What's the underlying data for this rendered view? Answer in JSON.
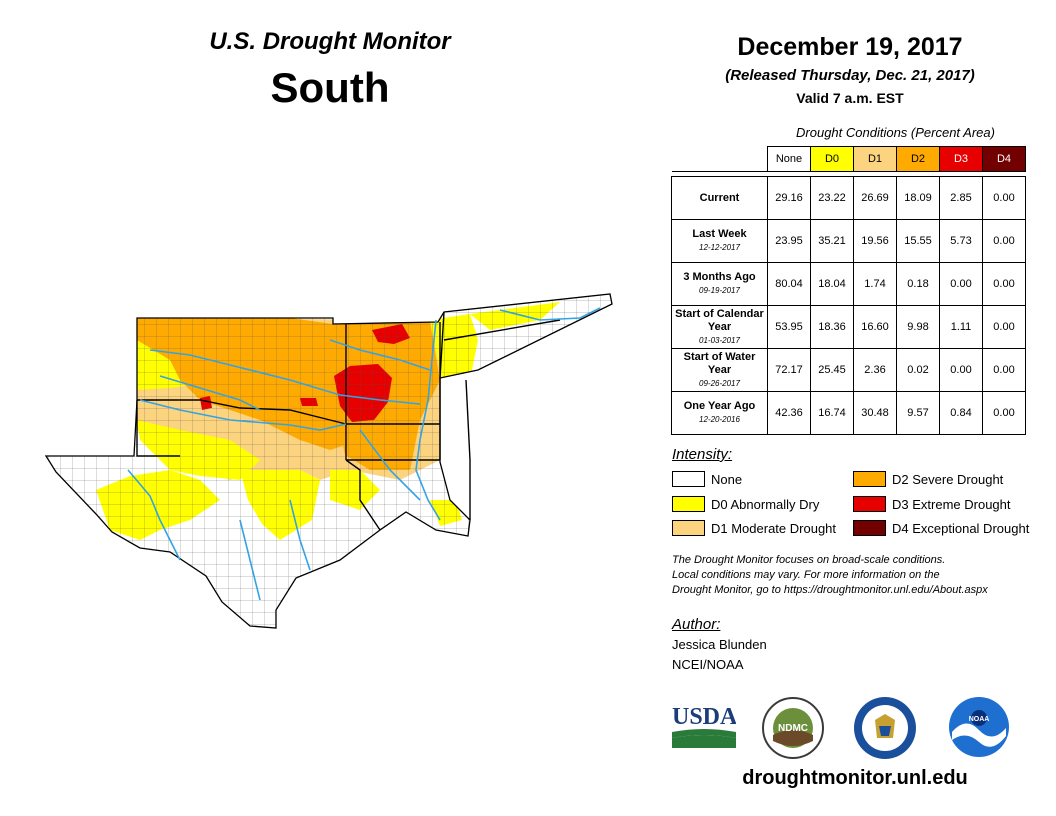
{
  "header": {
    "monitor_title": "U.S. Drought Monitor",
    "region": "South",
    "date": "December 19, 2017",
    "released": "(Released Thursday, Dec. 21, 2017)",
    "valid": "Valid 7 a.m. EST"
  },
  "table": {
    "caption": "Drought Conditions (Percent Area)",
    "columns": [
      {
        "label": "None",
        "color": "#ffffff"
      },
      {
        "label": "D0",
        "color": "#ffff00"
      },
      {
        "label": "D1",
        "color": "#fcd37f"
      },
      {
        "label": "D2",
        "color": "#ffaa00"
      },
      {
        "label": "D3",
        "color": "#e60000"
      },
      {
        "label": "D4",
        "color": "#730000"
      }
    ],
    "rows": [
      {
        "label": "Current",
        "date": "",
        "values": [
          "29.16",
          "23.22",
          "26.69",
          "18.09",
          "2.85",
          "0.00"
        ]
      },
      {
        "label": "Last Week",
        "date": "12-12-2017",
        "values": [
          "23.95",
          "35.21",
          "19.56",
          "15.55",
          "5.73",
          "0.00"
        ]
      },
      {
        "label": "3 Months Ago",
        "date": "09-19-2017",
        "values": [
          "80.04",
          "18.04",
          "1.74",
          "0.18",
          "0.00",
          "0.00"
        ]
      },
      {
        "label": "Start of Calendar Year",
        "date": "01-03-2017",
        "values": [
          "53.95",
          "18.36",
          "16.60",
          "9.98",
          "1.11",
          "0.00"
        ]
      },
      {
        "label": "Start of Water Year",
        "date": "09-26-2017",
        "values": [
          "72.17",
          "25.45",
          "2.36",
          "0.02",
          "0.00",
          "0.00"
        ]
      },
      {
        "label": "One Year Ago",
        "date": "12-20-2016",
        "values": [
          "42.36",
          "16.74",
          "30.48",
          "9.57",
          "0.84",
          "0.00"
        ]
      }
    ]
  },
  "legend": {
    "title": "Intensity:",
    "items": [
      {
        "label": "None",
        "color": "#ffffff"
      },
      {
        "label": "D0 Abnormally Dry",
        "color": "#ffff00"
      },
      {
        "label": "D1 Moderate Drought",
        "color": "#fcd37f"
      },
      {
        "label": "D2 Severe Drought",
        "color": "#ffaa00"
      },
      {
        "label": "D3 Extreme Drought",
        "color": "#e60000"
      },
      {
        "label": "D4 Exceptional Drought",
        "color": "#730000"
      }
    ]
  },
  "disclaimer": {
    "line1": "The Drought Monitor focuses on broad-scale conditions.",
    "line2": "Local conditions may vary. For more information on the",
    "line3": "Drought Monitor, go to https://droughtmonitor.unl.edu/About.aspx"
  },
  "author": {
    "label": "Author:",
    "name": "Jessica Blunden",
    "org": "NCEI/NOAA"
  },
  "logos": {
    "usda": "USDA",
    "ndmc": "NDMC",
    "noaa": "NOAA"
  },
  "website": "droughtmonitor.unl.edu",
  "map": {
    "water_color": "#33a3e6",
    "boundary_color": "#000000"
  }
}
